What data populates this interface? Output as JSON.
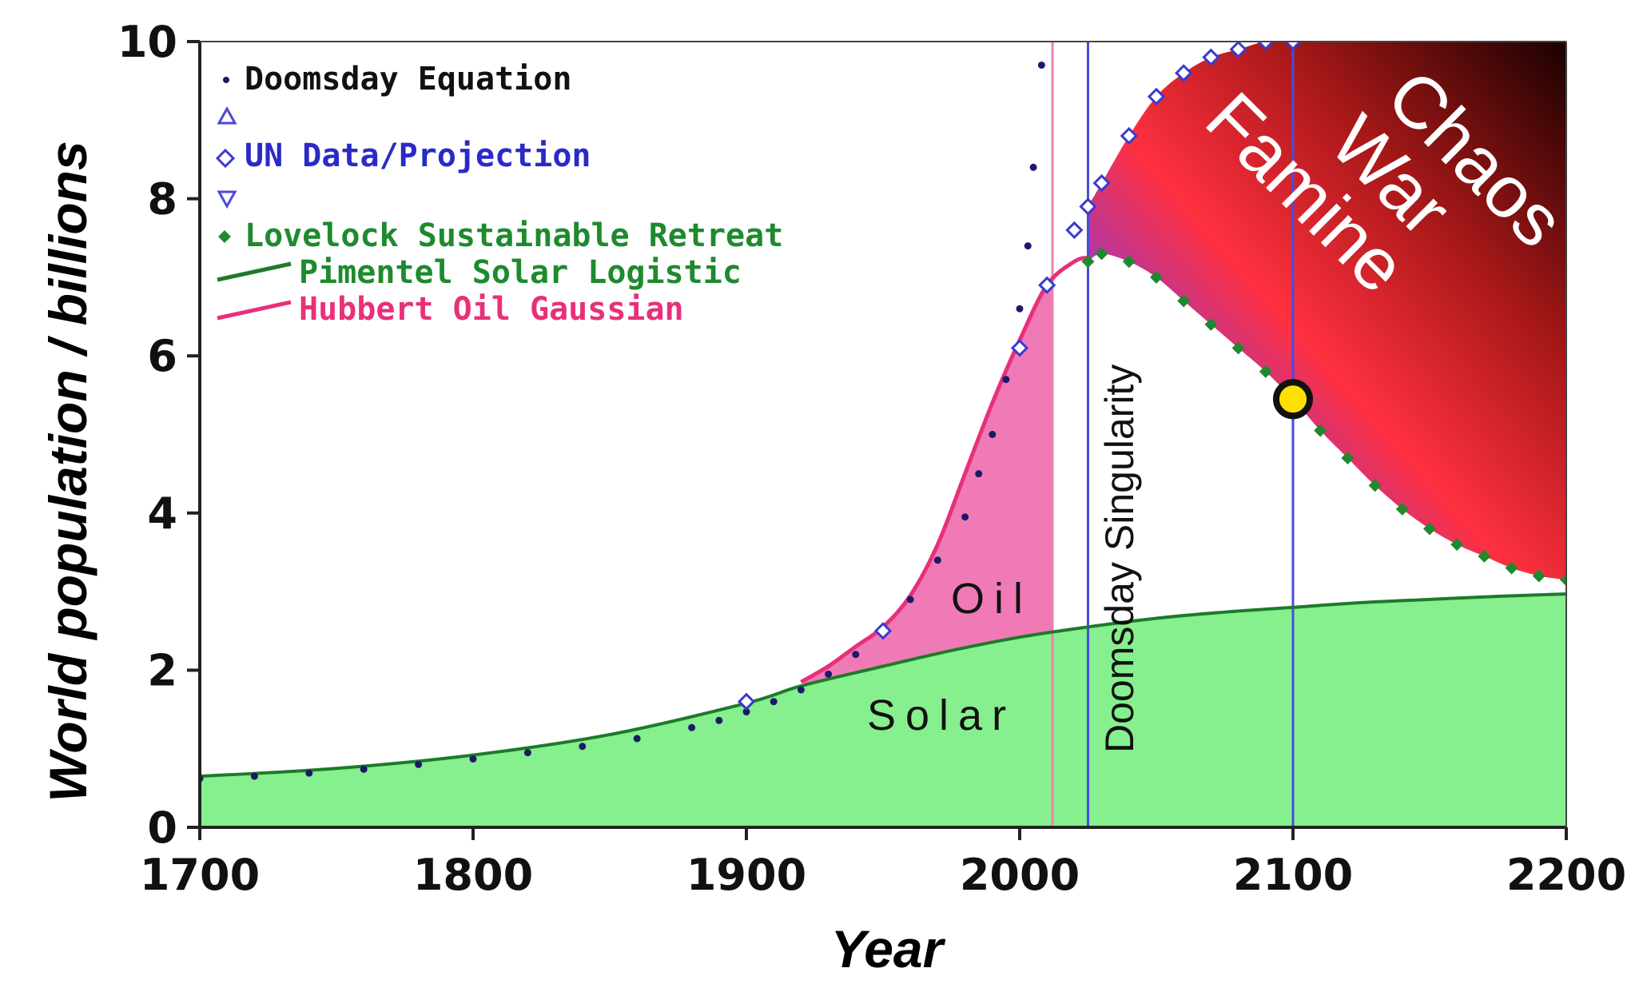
{
  "chart_data": {
    "type": "line",
    "title": "",
    "xlabel": "Year",
    "ylabel": "World population / billions",
    "xlim": [
      1700,
      2200
    ],
    "ylim": [
      0,
      10
    ],
    "xticks": [
      "1700",
      "1800",
      "1900",
      "2000",
      "2100",
      "2200"
    ],
    "yticks": [
      "0",
      "2",
      "4",
      "6",
      "8",
      "10"
    ],
    "grid": false,
    "legend_position": "top-left",
    "legend": [
      {
        "label": "Doomsday Equation",
        "marker": "dot",
        "color": "#1a1a66"
      },
      {
        "label": "",
        "marker": "triangle-up",
        "color": "#4a4ad8"
      },
      {
        "label": "UN Data/Projection",
        "marker": "diamond",
        "color": "#3a3ad0"
      },
      {
        "label": "",
        "marker": "triangle-down",
        "color": "#4a4ad8"
      },
      {
        "label": "Lovelock Sustainable Retreat",
        "marker": "diamond-filled",
        "color": "#1e8a2e"
      },
      {
        "label": "Pimentel Solar Logistic",
        "marker": "line",
        "color": "#1e7a2a"
      },
      {
        "label": "Hubbert Oil Gaussian",
        "marker": "line",
        "color": "#e8307a"
      }
    ],
    "series": [
      {
        "name": "Doomsday Equation",
        "x": [
          1700,
          1720,
          1740,
          1760,
          1780,
          1800,
          1820,
          1840,
          1860,
          1880,
          1890,
          1900,
          1910,
          1920,
          1930,
          1940,
          1950,
          1960,
          1970,
          1980,
          1985,
          1990,
          1995,
          2000,
          2003,
          2005,
          2008
        ],
        "y": [
          0.62,
          0.65,
          0.69,
          0.74,
          0.8,
          0.87,
          0.95,
          1.03,
          1.13,
          1.27,
          1.36,
          1.47,
          1.6,
          1.75,
          1.95,
          2.2,
          2.5,
          2.9,
          3.4,
          3.95,
          4.5,
          5.0,
          5.7,
          6.6,
          7.4,
          8.4,
          9.7
        ]
      },
      {
        "name": "UN Data/Projection",
        "x": [
          1900,
          1950,
          2000,
          2010,
          2020,
          2025,
          2030,
          2040,
          2050,
          2060,
          2070,
          2080,
          2090,
          2100
        ],
        "y": [
          1.6,
          2.5,
          6.1,
          6.9,
          7.6,
          7.9,
          8.2,
          8.8,
          9.3,
          9.6,
          9.8,
          9.9,
          10.0,
          10.0
        ]
      },
      {
        "name": "Lovelock Sustainable Retreat",
        "x": [
          2025,
          2030,
          2040,
          2050,
          2060,
          2070,
          2080,
          2090,
          2100,
          2110,
          2120,
          2130,
          2140,
          2150,
          2160,
          2170,
          2180,
          2190,
          2200
        ],
        "y": [
          7.2,
          7.3,
          7.2,
          7.0,
          6.7,
          6.4,
          6.1,
          5.8,
          5.45,
          5.05,
          4.7,
          4.35,
          4.05,
          3.8,
          3.6,
          3.45,
          3.3,
          3.2,
          3.15
        ]
      },
      {
        "name": "Pimentel Solar Logistic",
        "x": [
          1700,
          1750,
          1800,
          1850,
          1900,
          1920,
          1950,
          1975,
          2000,
          2025,
          2050,
          2075,
          2100,
          2125,
          2150,
          2175,
          2200
        ],
        "y": [
          0.65,
          0.75,
          0.92,
          1.18,
          1.58,
          1.8,
          2.05,
          2.25,
          2.42,
          2.55,
          2.66,
          2.74,
          2.8,
          2.86,
          2.9,
          2.94,
          2.97
        ]
      },
      {
        "name": "Hubbert Oil Gaussian",
        "x": [
          1920,
          1930,
          1940,
          1950,
          1960,
          1970,
          1980,
          1990,
          2000,
          2010,
          2020,
          2025
        ],
        "y": [
          1.85,
          2.05,
          2.3,
          2.55,
          2.95,
          3.6,
          4.5,
          5.4,
          6.2,
          6.9,
          7.2,
          7.25
        ]
      }
    ],
    "vertical_lines": [
      {
        "x": 2012,
        "color": "#f080b0",
        "label": ""
      },
      {
        "x": 2025,
        "color": "#4a4ae0",
        "label": "Doomsday Singularity"
      },
      {
        "x": 2100,
        "color": "#4a4ae0",
        "label": ""
      }
    ],
    "marker_point": {
      "x": 2100,
      "y": 5.45,
      "color": "#ffe000"
    },
    "annotations": {
      "oil": "Oil",
      "solar": "Solar",
      "chaos_lines": [
        "Chaos",
        "War",
        "Famine"
      ]
    }
  }
}
